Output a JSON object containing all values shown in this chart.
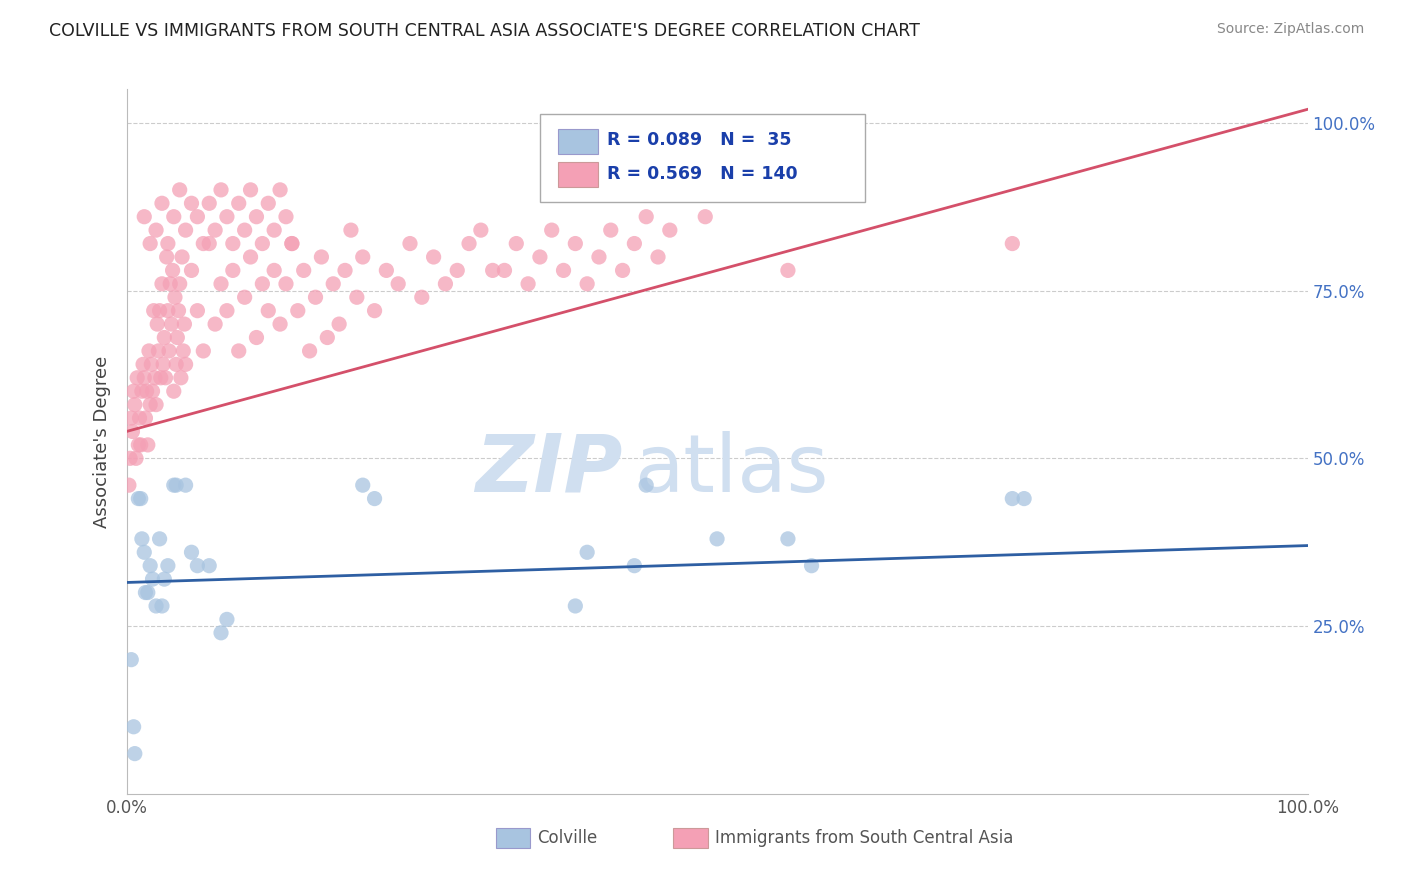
{
  "title": "COLVILLE VS IMMIGRANTS FROM SOUTH CENTRAL ASIA ASSOCIATE'S DEGREE CORRELATION CHART",
  "source": "Source: ZipAtlas.com",
  "ylabel": "Associate's Degree",
  "blue_color": "#a8c4e0",
  "pink_color": "#f4a0b5",
  "blue_line_color": "#2e5fa3",
  "pink_line_color": "#d4506a",
  "legend_text_color": "#1a3faa",
  "grid_color": "#cccccc",
  "watermark_color": "#d0dff0",
  "blue_scatter": [
    [
      0.004,
      0.2
    ],
    [
      0.006,
      0.1
    ],
    [
      0.007,
      0.06
    ],
    [
      0.01,
      0.44
    ],
    [
      0.012,
      0.44
    ],
    [
      0.013,
      0.38
    ],
    [
      0.015,
      0.36
    ],
    [
      0.016,
      0.3
    ],
    [
      0.018,
      0.3
    ],
    [
      0.02,
      0.34
    ],
    [
      0.022,
      0.32
    ],
    [
      0.025,
      0.28
    ],
    [
      0.028,
      0.38
    ],
    [
      0.03,
      0.28
    ],
    [
      0.032,
      0.32
    ],
    [
      0.035,
      0.34
    ],
    [
      0.04,
      0.46
    ],
    [
      0.042,
      0.46
    ],
    [
      0.05,
      0.46
    ],
    [
      0.055,
      0.36
    ],
    [
      0.06,
      0.34
    ],
    [
      0.07,
      0.34
    ],
    [
      0.08,
      0.24
    ],
    [
      0.085,
      0.26
    ],
    [
      0.2,
      0.46
    ],
    [
      0.21,
      0.44
    ],
    [
      0.38,
      0.28
    ],
    [
      0.39,
      0.36
    ],
    [
      0.43,
      0.34
    ],
    [
      0.44,
      0.46
    ],
    [
      0.5,
      0.38
    ],
    [
      0.56,
      0.38
    ],
    [
      0.58,
      0.34
    ],
    [
      0.75,
      0.44
    ],
    [
      0.76,
      0.44
    ]
  ],
  "pink_scatter": [
    [
      0.002,
      0.46
    ],
    [
      0.003,
      0.5
    ],
    [
      0.004,
      0.56
    ],
    [
      0.005,
      0.54
    ],
    [
      0.006,
      0.6
    ],
    [
      0.007,
      0.58
    ],
    [
      0.008,
      0.5
    ],
    [
      0.009,
      0.62
    ],
    [
      0.01,
      0.52
    ],
    [
      0.011,
      0.56
    ],
    [
      0.012,
      0.52
    ],
    [
      0.013,
      0.6
    ],
    [
      0.014,
      0.64
    ],
    [
      0.015,
      0.62
    ],
    [
      0.016,
      0.56
    ],
    [
      0.017,
      0.6
    ],
    [
      0.018,
      0.52
    ],
    [
      0.019,
      0.66
    ],
    [
      0.02,
      0.58
    ],
    [
      0.021,
      0.64
    ],
    [
      0.022,
      0.6
    ],
    [
      0.023,
      0.72
    ],
    [
      0.024,
      0.62
    ],
    [
      0.025,
      0.58
    ],
    [
      0.026,
      0.7
    ],
    [
      0.027,
      0.66
    ],
    [
      0.028,
      0.72
    ],
    [
      0.029,
      0.62
    ],
    [
      0.03,
      0.76
    ],
    [
      0.031,
      0.64
    ],
    [
      0.032,
      0.68
    ],
    [
      0.033,
      0.62
    ],
    [
      0.034,
      0.8
    ],
    [
      0.035,
      0.72
    ],
    [
      0.036,
      0.66
    ],
    [
      0.037,
      0.76
    ],
    [
      0.038,
      0.7
    ],
    [
      0.039,
      0.78
    ],
    [
      0.04,
      0.6
    ],
    [
      0.041,
      0.74
    ],
    [
      0.042,
      0.64
    ],
    [
      0.043,
      0.68
    ],
    [
      0.044,
      0.72
    ],
    [
      0.045,
      0.76
    ],
    [
      0.046,
      0.62
    ],
    [
      0.047,
      0.8
    ],
    [
      0.048,
      0.66
    ],
    [
      0.049,
      0.7
    ],
    [
      0.05,
      0.64
    ],
    [
      0.055,
      0.78
    ],
    [
      0.06,
      0.72
    ],
    [
      0.065,
      0.66
    ],
    [
      0.07,
      0.82
    ],
    [
      0.075,
      0.7
    ],
    [
      0.08,
      0.76
    ],
    [
      0.085,
      0.72
    ],
    [
      0.09,
      0.78
    ],
    [
      0.095,
      0.66
    ],
    [
      0.1,
      0.74
    ],
    [
      0.105,
      0.8
    ],
    [
      0.11,
      0.68
    ],
    [
      0.115,
      0.76
    ],
    [
      0.12,
      0.72
    ],
    [
      0.125,
      0.78
    ],
    [
      0.13,
      0.7
    ],
    [
      0.135,
      0.76
    ],
    [
      0.14,
      0.82
    ],
    [
      0.145,
      0.72
    ],
    [
      0.15,
      0.78
    ],
    [
      0.155,
      0.66
    ],
    [
      0.16,
      0.74
    ],
    [
      0.165,
      0.8
    ],
    [
      0.17,
      0.68
    ],
    [
      0.175,
      0.76
    ],
    [
      0.18,
      0.7
    ],
    [
      0.185,
      0.78
    ],
    [
      0.19,
      0.84
    ],
    [
      0.195,
      0.74
    ],
    [
      0.2,
      0.8
    ],
    [
      0.21,
      0.72
    ],
    [
      0.22,
      0.78
    ],
    [
      0.23,
      0.76
    ],
    [
      0.24,
      0.82
    ],
    [
      0.25,
      0.74
    ],
    [
      0.26,
      0.8
    ],
    [
      0.27,
      0.76
    ],
    [
      0.28,
      0.78
    ],
    [
      0.29,
      0.82
    ],
    [
      0.3,
      0.84
    ],
    [
      0.31,
      0.78
    ],
    [
      0.32,
      0.78
    ],
    [
      0.33,
      0.82
    ],
    [
      0.34,
      0.76
    ],
    [
      0.35,
      0.8
    ],
    [
      0.36,
      0.84
    ],
    [
      0.37,
      0.78
    ],
    [
      0.38,
      0.82
    ],
    [
      0.39,
      0.76
    ],
    [
      0.4,
      0.8
    ],
    [
      0.41,
      0.84
    ],
    [
      0.42,
      0.78
    ],
    [
      0.43,
      0.82
    ],
    [
      0.44,
      0.86
    ],
    [
      0.45,
      0.8
    ],
    [
      0.46,
      0.84
    ],
    [
      0.49,
      0.86
    ],
    [
      0.56,
      0.78
    ],
    [
      0.015,
      0.86
    ],
    [
      0.02,
      0.82
    ],
    [
      0.025,
      0.84
    ],
    [
      0.03,
      0.88
    ],
    [
      0.035,
      0.82
    ],
    [
      0.04,
      0.86
    ],
    [
      0.045,
      0.9
    ],
    [
      0.05,
      0.84
    ],
    [
      0.055,
      0.88
    ],
    [
      0.06,
      0.86
    ],
    [
      0.065,
      0.82
    ],
    [
      0.07,
      0.88
    ],
    [
      0.075,
      0.84
    ],
    [
      0.08,
      0.9
    ],
    [
      0.085,
      0.86
    ],
    [
      0.09,
      0.82
    ],
    [
      0.095,
      0.88
    ],
    [
      0.1,
      0.84
    ],
    [
      0.105,
      0.9
    ],
    [
      0.11,
      0.86
    ],
    [
      0.115,
      0.82
    ],
    [
      0.12,
      0.88
    ],
    [
      0.125,
      0.84
    ],
    [
      0.13,
      0.9
    ],
    [
      0.135,
      0.86
    ],
    [
      0.14,
      0.82
    ],
    [
      0.75,
      0.82
    ]
  ],
  "xlim": [
    0.0,
    1.0
  ],
  "ylim": [
    0.0,
    1.05
  ],
  "pink_line_x": [
    0.0,
    1.0
  ],
  "pink_line_y": [
    0.54,
    1.02
  ],
  "blue_line_x": [
    0.0,
    1.0
  ],
  "blue_line_y": [
    0.315,
    0.37
  ]
}
